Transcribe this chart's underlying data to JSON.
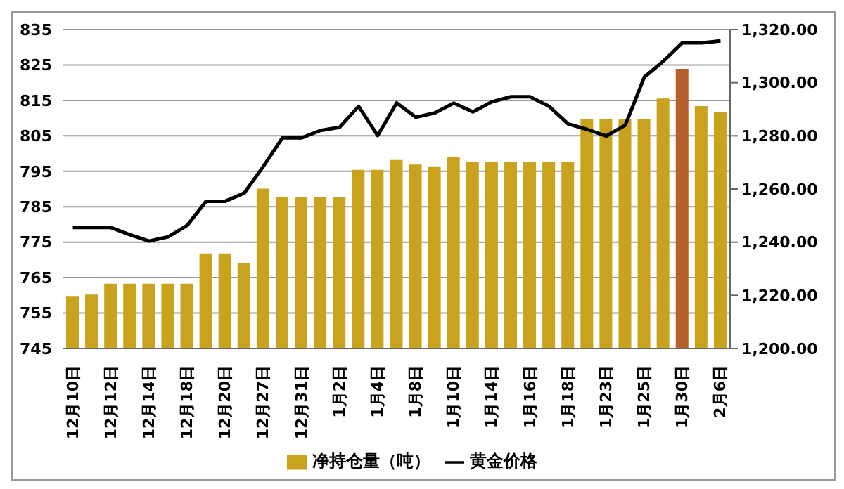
{
  "chart_data": {
    "type": "bar",
    "categories": [
      "12月10日",
      null,
      "12月12日",
      null,
      "12月14日",
      null,
      "12月18日",
      null,
      "12月20日",
      null,
      "12月27日",
      null,
      "12月31日",
      null,
      "1月2日",
      null,
      "1月4日",
      null,
      "1月8日",
      null,
      "1月10日",
      null,
      "1月14日",
      null,
      "1月16日",
      null,
      "1月18日",
      null,
      "1月23日",
      null,
      "1月25日",
      null,
      "1月30日",
      null,
      "2月6日"
    ],
    "series": [
      {
        "name": "净持仓量（吨）",
        "color": "#c9a21e",
        "colors": [
          "#c9a21e",
          "#c9a21e",
          "#c9a21e",
          "#c9a21e",
          "#c9a21e",
          "#c9a21e",
          "#c9a21e",
          "#c9a21e",
          "#c9a21e",
          "#c9a21e",
          "#c9a21e",
          "#c9a21e",
          "#c9a21e",
          "#c9a21e",
          "#c9a21e",
          "#c9a21e",
          "#c9a21e",
          "#c9a21e",
          "#c9a21e",
          "#c9a21e",
          "#c9a21e",
          "#c9a21e",
          "#c9a21e",
          "#c9a21e",
          "#c9a21e",
          "#c9a21e",
          "#c9a21e",
          "#c9a21e",
          "#c9a21e",
          "#c9a21e",
          "#c9a21e",
          "#c9a21e",
          "#b5612b",
          "#c9a21e",
          "#c9a21e"
        ],
        "values": [
          759.6,
          760.2,
          763.3,
          763.3,
          763.3,
          763.3,
          763.3,
          771.8,
          771.8,
          769.2,
          790.1,
          787.6,
          787.6,
          787.6,
          787.6,
          795.4,
          795.4,
          798.2,
          796.9,
          796.4,
          799.1,
          797.7,
          797.7,
          797.7,
          797.7,
          797.7,
          797.7,
          809.8,
          809.8,
          809.8,
          809.8,
          815.5,
          823.9,
          813.4,
          811.7
        ]
      },
      {
        "name": "黄金价格",
        "type": "line",
        "axis": "y2",
        "color": "#000000",
        "values": [
          1245.5,
          1245.5,
          1245.5,
          1242.8,
          1240.4,
          1242,
          1246.3,
          1255.4,
          1255.4,
          1258.5,
          1268.5,
          1279.2,
          1279.2,
          1282,
          1283.2,
          1291.1,
          1280.1,
          1292.4,
          1287,
          1288.6,
          1292.3,
          1289,
          1292.8,
          1294.7,
          1294.7,
          1291.1,
          1284.5,
          1282.4,
          1279.9,
          1284,
          1302.1,
          1308.1,
          1315,
          1315,
          1315.7
        ]
      }
    ],
    "ylim": [
      745,
      835
    ],
    "yticks": [
      745,
      755,
      765,
      775,
      785,
      795,
      805,
      815,
      825,
      835
    ],
    "y2lim": [
      1200,
      1320
    ],
    "y2ticks": [
      {
        "value": 1200,
        "label": "1,200.00"
      },
      {
        "value": 1220,
        "label": "1,220.00"
      },
      {
        "value": 1240,
        "label": "1,240.00"
      },
      {
        "value": 1260,
        "label": "1,260.00"
      },
      {
        "value": 1280,
        "label": "1,280.00"
      },
      {
        "value": 1300,
        "label": "1,300.00"
      },
      {
        "value": 1320,
        "label": "1,320.00"
      }
    ],
    "grid": "y",
    "legend": "bottom",
    "marker": "none",
    "line_style": "solid"
  }
}
